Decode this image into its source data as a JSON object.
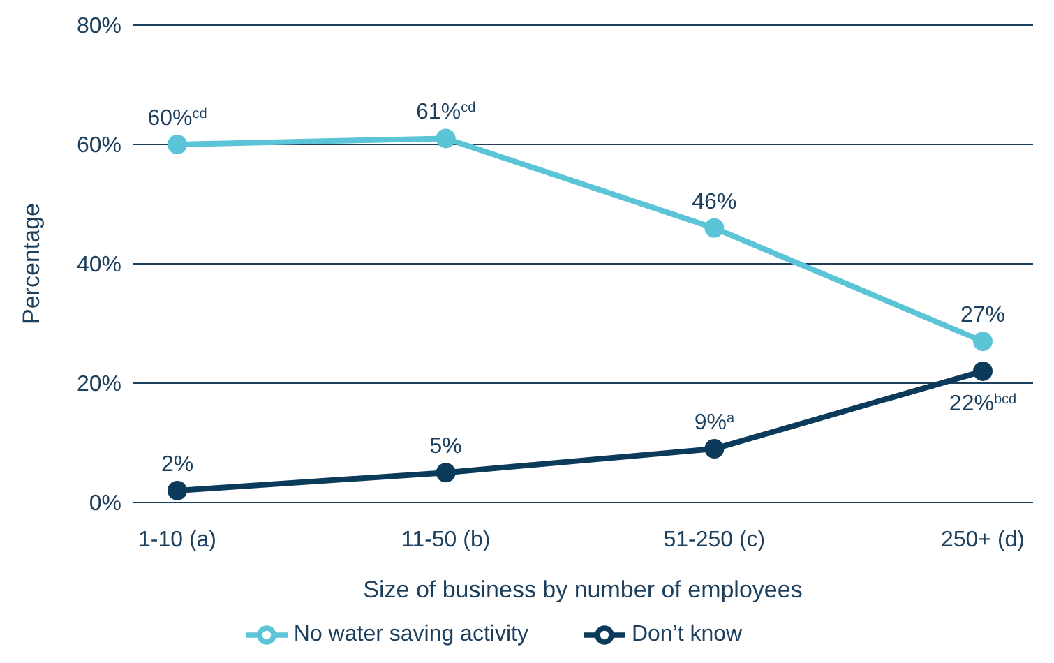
{
  "chart_data": {
    "type": "line",
    "xlabel": "Size of business by number of employees",
    "ylabel": "Percentage",
    "categories": [
      "1-10 (a)",
      "11-50 (b)",
      "51-250 (c)",
      "250+ (d)"
    ],
    "series": [
      {
        "name": "No water saving activity",
        "color": "#5bc4d6",
        "values": [
          60,
          61,
          46,
          27
        ],
        "value_labels": [
          "60%$^{cd}$",
          "61%$^{cd}$",
          "46%",
          "27%"
        ]
      },
      {
        "name": "Don’t know",
        "color": "#0b3a5a",
        "values": [
          2,
          5,
          9,
          22
        ],
        "value_labels": [
          "2%",
          "5%",
          "9%$^{a}$",
          "22%$^{bcd}$"
        ]
      }
    ],
    "ylim": [
      0,
      80
    ],
    "yticks": [
      {
        "value": 0,
        "label": "0%"
      },
      {
        "value": 20,
        "label": "20%"
      },
      {
        "value": 40,
        "label": "40%"
      },
      {
        "value": 60,
        "label": "60%"
      },
      {
        "value": 80,
        "label": "80%"
      }
    ],
    "grid": "y",
    "legend": "bottom",
    "marker": "circle",
    "line_style": "solid"
  }
}
